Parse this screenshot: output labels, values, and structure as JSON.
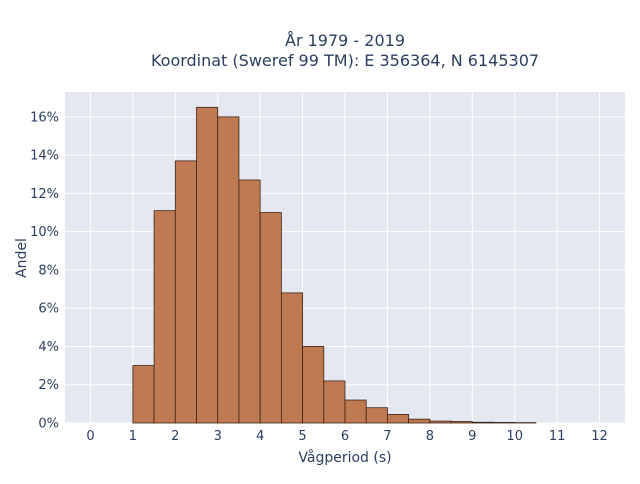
{
  "chart_data": {
    "type": "bar",
    "title_line1": "År 1979 - 2019",
    "title_line2": "Koordinat (Sweref 99 TM): E 356364, N 6145307",
    "xlabel": "Vågperiod (s)",
    "ylabel": "Andel",
    "xlim": [
      -0.6,
      12.6
    ],
    "ylim": [
      0,
      0.173
    ],
    "x_ticks": [
      0,
      1,
      2,
      3,
      4,
      5,
      6,
      7,
      8,
      9,
      10,
      11,
      12
    ],
    "x_tick_labels": [
      "0",
      "1",
      "2",
      "3",
      "4",
      "5",
      "6",
      "7",
      "8",
      "9",
      "10",
      "11",
      "12"
    ],
    "y_ticks": [
      0,
      0.02,
      0.04,
      0.06,
      0.08,
      0.1,
      0.12,
      0.14,
      0.16
    ],
    "y_tick_labels": [
      "0%",
      "2%",
      "4%",
      "6%",
      "8%",
      "10%",
      "12%",
      "14%",
      "16%"
    ],
    "bin_width": 0.5,
    "bins": [
      {
        "x0": 1.0,
        "x1": 1.5,
        "value": 0.03
      },
      {
        "x0": 1.5,
        "x1": 2.0,
        "value": 0.111
      },
      {
        "x0": 2.0,
        "x1": 2.5,
        "value": 0.137
      },
      {
        "x0": 2.5,
        "x1": 3.0,
        "value": 0.165
      },
      {
        "x0": 3.0,
        "x1": 3.5,
        "value": 0.16
      },
      {
        "x0": 3.5,
        "x1": 4.0,
        "value": 0.127
      },
      {
        "x0": 4.0,
        "x1": 4.5,
        "value": 0.11
      },
      {
        "x0": 4.5,
        "x1": 5.0,
        "value": 0.068
      },
      {
        "x0": 5.0,
        "x1": 5.5,
        "value": 0.04
      },
      {
        "x0": 5.5,
        "x1": 6.0,
        "value": 0.022
      },
      {
        "x0": 6.0,
        "x1": 6.5,
        "value": 0.012
      },
      {
        "x0": 6.5,
        "x1": 7.0,
        "value": 0.008
      },
      {
        "x0": 7.0,
        "x1": 7.5,
        "value": 0.0045
      },
      {
        "x0": 7.5,
        "x1": 8.0,
        "value": 0.002
      },
      {
        "x0": 8.0,
        "x1": 8.5,
        "value": 0.001
      },
      {
        "x0": 8.5,
        "x1": 9.0,
        "value": 0.0008
      },
      {
        "x0": 9.0,
        "x1": 9.5,
        "value": 0.0004
      },
      {
        "x0": 9.5,
        "x1": 10.0,
        "value": 0.0003
      },
      {
        "x0": 10.0,
        "x1": 10.5,
        "value": 0.0002
      }
    ],
    "grid": true,
    "colors": {
      "bar_fill": "#c07a52",
      "bar_stroke": "#3b2418",
      "plot_bg": "#e5e8f0",
      "grid": "#ffffff",
      "text": "#2a3f5f"
    }
  }
}
